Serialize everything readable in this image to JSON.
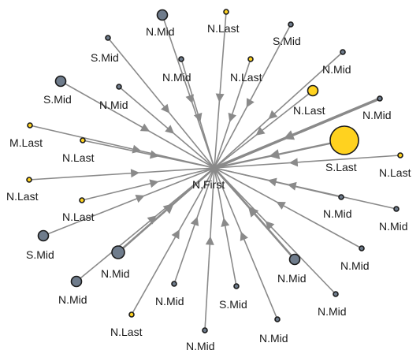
{
  "diagram": {
    "type": "directed-graph",
    "colors": {
      "edge": "#8a8a8a",
      "node_gray": "#6f7c8c",
      "node_yellow": "#ffd21f",
      "node_stroke": "#1a1a1a",
      "label": "#1a1a1a"
    },
    "center": {
      "id": "center",
      "label": "N.First"
    },
    "nodes": [
      {
        "id": "n01",
        "label": "N.Mid",
        "color": "gray"
      },
      {
        "id": "n02",
        "label": "N.Last",
        "color": "yellow"
      },
      {
        "id": "n03",
        "label": "S.Mid",
        "color": "gray"
      },
      {
        "id": "n04",
        "label": "S.Mid",
        "color": "gray"
      },
      {
        "id": "n05",
        "label": "N.Mid",
        "color": "gray"
      },
      {
        "id": "n06",
        "label": "N.Last",
        "color": "yellow"
      },
      {
        "id": "n07",
        "label": "N.Mid",
        "color": "gray"
      },
      {
        "id": "n08",
        "label": "S.Mid",
        "color": "gray"
      },
      {
        "id": "n09",
        "label": "N.Mid",
        "color": "gray"
      },
      {
        "id": "n10",
        "label": "N.Last",
        "color": "yellow"
      },
      {
        "id": "n11",
        "label": "N.Mid",
        "color": "gray"
      },
      {
        "id": "n12",
        "label": "M.Last",
        "color": "yellow"
      },
      {
        "id": "n13",
        "label": "N.Last",
        "color": "yellow"
      },
      {
        "id": "n14",
        "label": "S.Last",
        "color": "yellow"
      },
      {
        "id": "n15",
        "label": "N.Last",
        "color": "yellow"
      },
      {
        "id": "n16",
        "label": "N.Last",
        "color": "yellow"
      },
      {
        "id": "n17",
        "label": "N.Last",
        "color": "yellow"
      },
      {
        "id": "n18",
        "label": "N.Mid",
        "color": "gray"
      },
      {
        "id": "n19",
        "label": "N.Mid",
        "color": "gray"
      },
      {
        "id": "n20",
        "label": "S.Mid",
        "color": "gray"
      },
      {
        "id": "n21",
        "label": "N.Mid",
        "color": "gray"
      },
      {
        "id": "n22",
        "label": "N.Mid",
        "color": "gray"
      },
      {
        "id": "n23",
        "label": "N.Mid",
        "color": "gray"
      },
      {
        "id": "n24",
        "label": "N.Mid",
        "color": "gray"
      },
      {
        "id": "n25",
        "label": "N.Mid",
        "color": "gray"
      },
      {
        "id": "n26",
        "label": "N.Mid",
        "color": "gray"
      },
      {
        "id": "n27",
        "label": "S.Mid",
        "color": "gray"
      },
      {
        "id": "n28",
        "label": "N.Mid",
        "color": "gray"
      },
      {
        "id": "n29",
        "label": "N.Mid",
        "color": "gray"
      },
      {
        "id": "n30",
        "label": "N.Last",
        "color": "yellow"
      }
    ]
  }
}
